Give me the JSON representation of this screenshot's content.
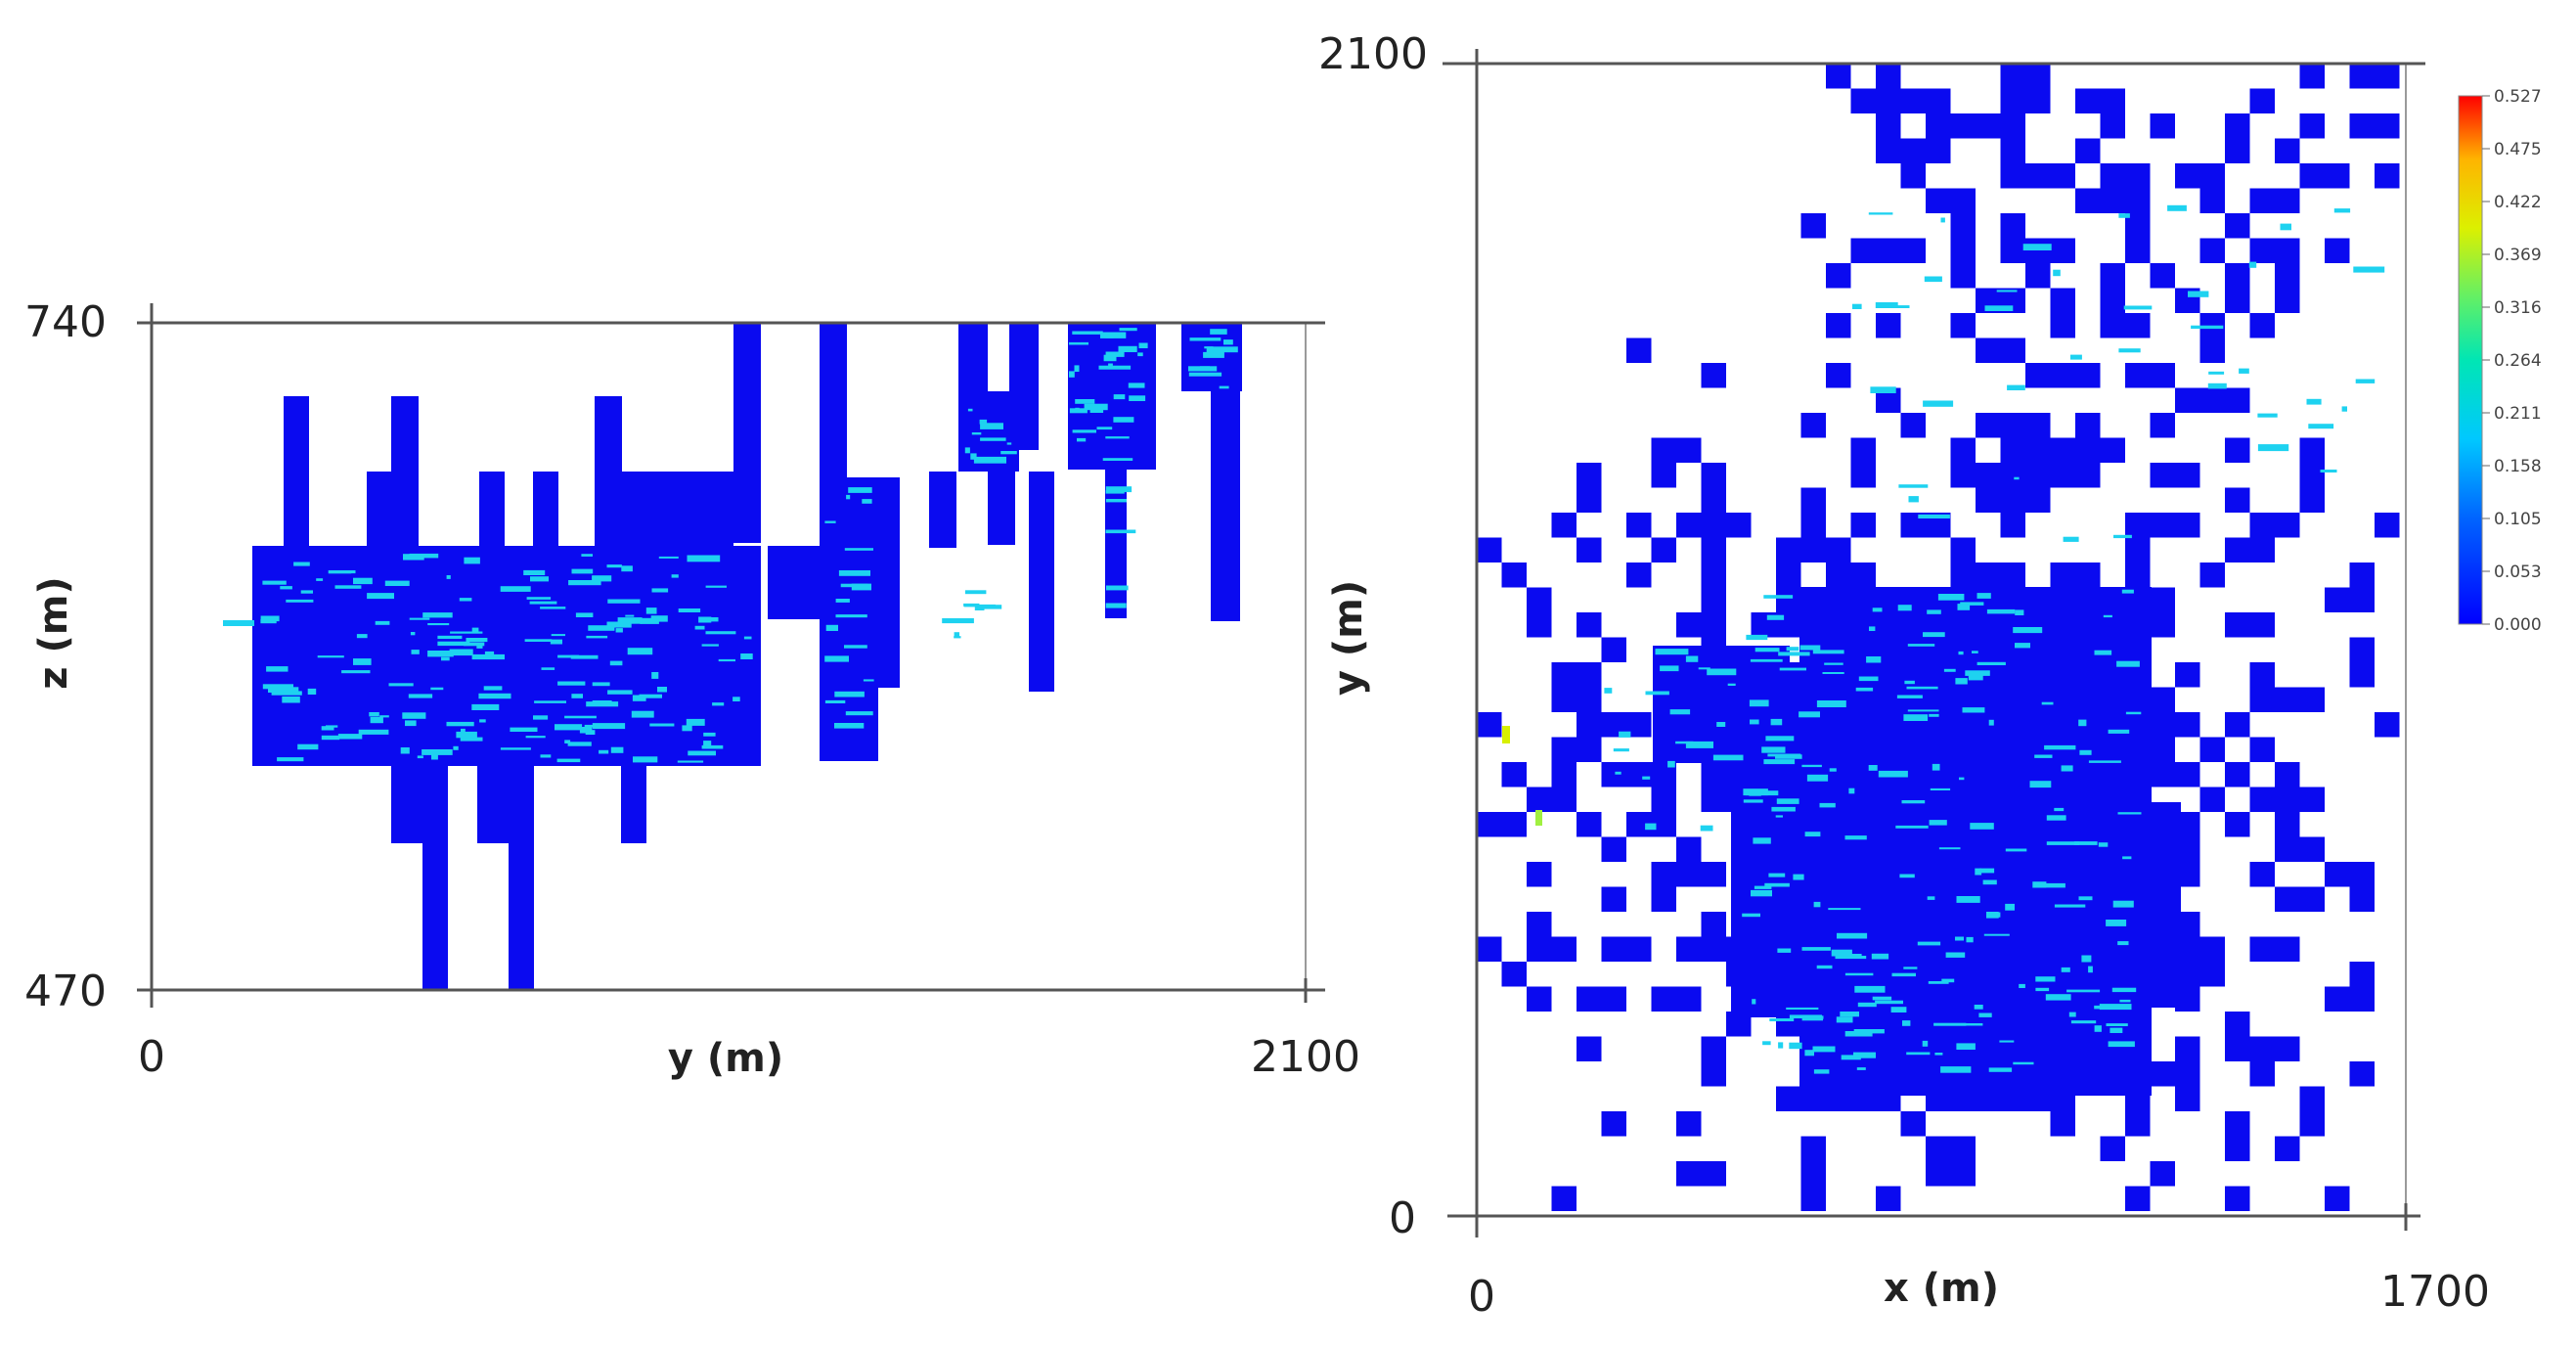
{
  "chart_data": [
    {
      "type": "heatmap",
      "xlabel": "y (m)",
      "ylabel": "z (m)",
      "xlim": [
        0,
        2100
      ],
      "ylim": [
        470,
        740
      ],
      "x_tick_labels": [
        "0",
        "2100"
      ],
      "y_tick_labels": [
        "470",
        "740"
      ],
      "color_field": "blue fill (0.000–0.053) with cyan streaks (~0.15–0.21)"
    },
    {
      "type": "heatmap",
      "xlabel": "x (m)",
      "ylabel": "y (m)",
      "xlim": [
        0,
        1700
      ],
      "ylim": [
        0,
        2100
      ],
      "x_tick_labels": [
        "0",
        "1700"
      ],
      "y_tick_labels": [
        "0",
        "2100"
      ],
      "colorbar": {
        "min": 0.0,
        "max": 0.527,
        "tick_labels": [
          "0.527",
          "0.475",
          "0.422",
          "0.369",
          "0.316",
          "0.264",
          "0.211",
          "0.158",
          "0.105",
          "0.053",
          "0.000"
        ],
        "colors": [
          "#0000ff",
          "#0064ff",
          "#00c8ff",
          "#00e6b4",
          "#64f064",
          "#dcf000",
          "#ffb400",
          "#ff0000"
        ]
      }
    }
  ],
  "colors": {
    "base": "#0a0af0",
    "cyan": "#1ed2f0",
    "axis": "#555555"
  }
}
